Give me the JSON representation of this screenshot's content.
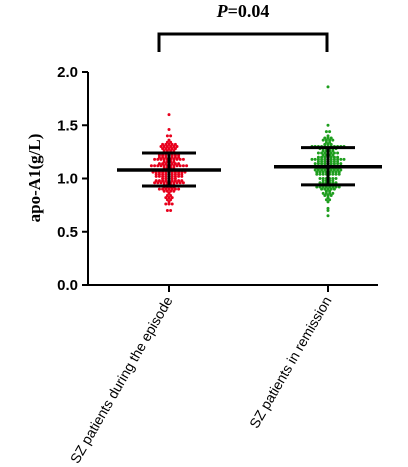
{
  "chart_data": {
    "type": "scatter",
    "ylabel": "apo-A1(g/L)",
    "ylim": [
      0.0,
      2.0
    ],
    "yticks": [
      "0.0",
      "0.5",
      "1.0",
      "1.5",
      "2.0"
    ],
    "categories": [
      "SZ patients during the episode",
      "SZ patients in remission"
    ],
    "series": [
      {
        "category": "SZ patients during the episode",
        "color": "#e8001c",
        "mean": 1.08,
        "sd_low": 0.93,
        "sd_high": 1.24,
        "min": 0.7,
        "max": 1.6
      },
      {
        "category": "SZ patients in remission",
        "color": "#1e9e1e",
        "mean": 1.11,
        "sd_low": 0.94,
        "sd_high": 1.29,
        "min": 0.65,
        "max": 1.86
      }
    ],
    "annotation": {
      "p_italic": "P",
      "p_rest": "=0.04"
    }
  }
}
